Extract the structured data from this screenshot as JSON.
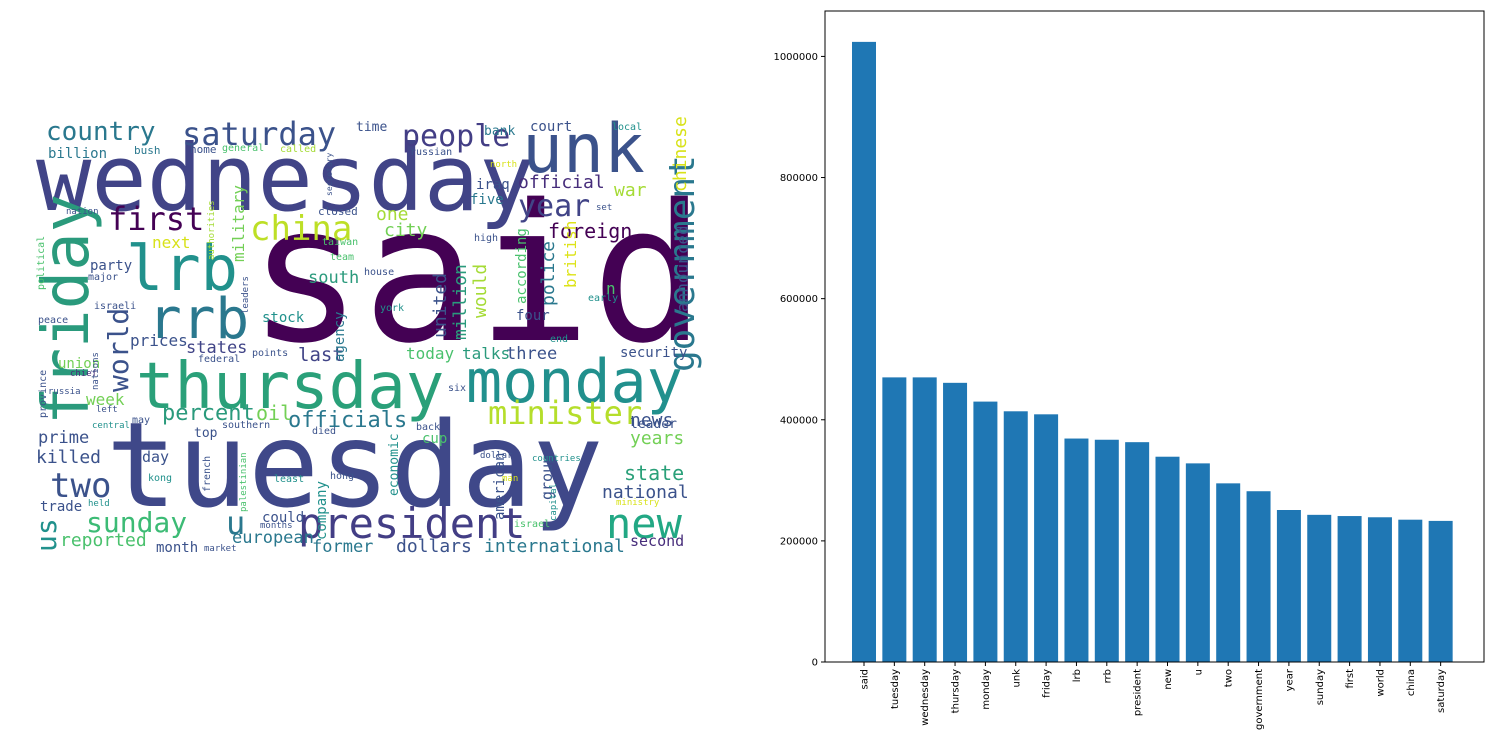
{
  "wordcloud": {
    "palette": [
      "#440154",
      "#3b528b",
      "#21918c",
      "#5ec962",
      "#fde725"
    ],
    "words": [
      {
        "text": "said",
        "c": "#440154"
      },
      {
        "text": "tuesday",
        "c": "#3f4889"
      },
      {
        "text": "wednesday",
        "c": "#414487"
      },
      {
        "text": "thursday",
        "c": "#2aa079"
      },
      {
        "text": "monday",
        "c": "#21908d"
      },
      {
        "text": "unk",
        "c": "#3b528b"
      },
      {
        "text": "friday",
        "c": "#2a9a7c"
      },
      {
        "text": "lrb",
        "c": "#21918c"
      },
      {
        "text": "rrb",
        "c": "#2a788e"
      },
      {
        "text": "president",
        "c": "#433e85"
      },
      {
        "text": "new",
        "c": "#22a884"
      },
      {
        "text": "government",
        "c": "#2a788e"
      },
      {
        "text": "minister",
        "c": "#b5de2b"
      },
      {
        "text": "china",
        "c": "#bddf26"
      },
      {
        "text": "saturday",
        "c": "#3b528b"
      },
      {
        "text": "people",
        "c": "#433e85"
      },
      {
        "text": "country",
        "c": "#2a788e"
      },
      {
        "text": "year",
        "c": "#414487"
      },
      {
        "text": "first",
        "c": "#440154"
      },
      {
        "text": "sunday",
        "c": "#3cbb75"
      },
      {
        "text": "u",
        "c": "#2a788e"
      },
      {
        "text": "two",
        "c": "#3b528b"
      },
      {
        "text": "us",
        "c": "#21918c"
      },
      {
        "text": "world",
        "c": "#3b528b"
      },
      {
        "text": "officials",
        "c": "#2a788e"
      },
      {
        "text": "percent",
        "c": "#2a9a7c"
      },
      {
        "text": "oil",
        "c": "#73d056"
      },
      {
        "text": "united",
        "c": "#3b528b"
      },
      {
        "text": "million",
        "c": "#2a9a7c"
      },
      {
        "text": "police",
        "c": "#2a788e"
      },
      {
        "text": "foreign",
        "c": "#440154"
      },
      {
        "text": "official",
        "c": "#472d7b"
      },
      {
        "text": "chinese",
        "c": "#d8e219"
      },
      {
        "text": "war",
        "c": "#a5db36"
      },
      {
        "text": "would",
        "c": "#a5db36"
      },
      {
        "text": "british",
        "c": "#dde318"
      },
      {
        "text": "according",
        "c": "#4ac16d"
      },
      {
        "text": "announced",
        "c": "#3b528b"
      },
      {
        "text": "national",
        "c": "#3b528b"
      },
      {
        "text": "state",
        "c": "#2aa079"
      },
      {
        "text": "news",
        "c": "#3b528b"
      },
      {
        "text": "years",
        "c": "#73d056"
      },
      {
        "text": "international",
        "c": "#2a788e"
      },
      {
        "text": "dollars",
        "c": "#3b528b"
      },
      {
        "text": "former",
        "c": "#2a788e"
      },
      {
        "text": "european",
        "c": "#2a788e"
      },
      {
        "text": "reported",
        "c": "#4ac16d"
      },
      {
        "text": "killed",
        "c": "#3b528b"
      },
      {
        "text": "prime",
        "c": "#3b528b"
      },
      {
        "text": "week",
        "c": "#73d056"
      },
      {
        "text": "last",
        "c": "#414487"
      },
      {
        "text": "states",
        "c": "#414487"
      },
      {
        "text": "prices",
        "c": "#3b528b"
      },
      {
        "text": "south",
        "c": "#2a9a7c"
      },
      {
        "text": "city",
        "c": "#73d056"
      },
      {
        "text": "one",
        "c": "#a5db36"
      },
      {
        "text": "next",
        "c": "#d8e219"
      },
      {
        "text": "military",
        "c": "#73d056"
      },
      {
        "text": "party",
        "c": "#3b528b"
      },
      {
        "text": "stock",
        "c": "#21918c"
      },
      {
        "text": "three",
        "c": "#3b528b"
      },
      {
        "text": "today",
        "c": "#4ac16d"
      },
      {
        "text": "talks",
        "c": "#2a9a7c"
      },
      {
        "text": "security",
        "c": "#3b528b"
      },
      {
        "text": "leader",
        "c": "#3b528b"
      },
      {
        "text": "four",
        "c": "#3b528b"
      },
      {
        "text": "n",
        "c": "#4ac16d"
      },
      {
        "text": "group",
        "c": "#3b528b"
      },
      {
        "text": "american",
        "c": "#3b528b"
      },
      {
        "text": "economic",
        "c": "#21918c"
      },
      {
        "text": "cup",
        "c": "#4ac16d"
      },
      {
        "text": "second",
        "c": "#472d7b"
      },
      {
        "text": "company",
        "c": "#21918c"
      },
      {
        "text": "could",
        "c": "#3b528b"
      },
      {
        "text": "month",
        "c": "#3b528b"
      },
      {
        "text": "trade",
        "c": "#3b528b"
      },
      {
        "text": "day",
        "c": "#3b528b"
      },
      {
        "text": "top",
        "c": "#3b528b"
      },
      {
        "text": "union",
        "c": "#73d056"
      },
      {
        "text": "billion",
        "c": "#2a788e"
      },
      {
        "text": "bank",
        "c": "#2a788e"
      },
      {
        "text": "court",
        "c": "#3b528b"
      },
      {
        "text": "iraq",
        "c": "#3b528b"
      },
      {
        "text": "five",
        "c": "#2a788e"
      },
      {
        "text": "time",
        "c": "#3b528b"
      },
      {
        "text": "agency",
        "c": "#2a788e"
      },
      {
        "text": "closed",
        "c": "#3b528b"
      },
      {
        "text": "high",
        "c": "#3b528b"
      },
      {
        "text": "taiwan",
        "c": "#4ac16d"
      },
      {
        "text": "team",
        "c": "#4ac16d"
      },
      {
        "text": "house",
        "c": "#3b528b"
      },
      {
        "text": "york",
        "c": "#21918c"
      },
      {
        "text": "early",
        "c": "#21918c"
      },
      {
        "text": "end",
        "c": "#21918c"
      },
      {
        "text": "six",
        "c": "#3b528b"
      },
      {
        "text": "points",
        "c": "#3b528b"
      },
      {
        "text": "federal",
        "c": "#3b528b"
      },
      {
        "text": "chief",
        "c": "#472d7b"
      },
      {
        "text": "russia",
        "c": "#3b528b"
      },
      {
        "text": "peace",
        "c": "#3b528b"
      },
      {
        "text": "major",
        "c": "#3b528b"
      },
      {
        "text": "israeli",
        "c": "#3b528b"
      },
      {
        "text": "political",
        "c": "#4ac16d"
      },
      {
        "text": "province",
        "c": "#3b528b"
      },
      {
        "text": "nation",
        "c": "#3b528b"
      },
      {
        "text": "leaders",
        "c": "#3b528b"
      },
      {
        "text": "authorities",
        "c": "#a5db36"
      },
      {
        "text": "bush",
        "c": "#2a788e"
      },
      {
        "text": "home",
        "c": "#3b528b"
      },
      {
        "text": "general",
        "c": "#4ac16d"
      },
      {
        "text": "called",
        "c": "#a5db36"
      },
      {
        "text": "secretary",
        "c": "#3b528b"
      },
      {
        "text": "russian",
        "c": "#3b528b"
      },
      {
        "text": "north",
        "c": "#d8e219"
      },
      {
        "text": "local",
        "c": "#21918c"
      },
      {
        "text": "set",
        "c": "#3b528b"
      },
      {
        "text": "nations",
        "c": "#3b528b"
      },
      {
        "text": "may",
        "c": "#3b528b"
      },
      {
        "text": "left",
        "c": "#3b528b"
      },
      {
        "text": "central",
        "c": "#21918c"
      },
      {
        "text": "kong",
        "c": "#21918c"
      },
      {
        "text": "hong",
        "c": "#3b528b"
      },
      {
        "text": "french",
        "c": "#3b528b"
      },
      {
        "text": "southern",
        "c": "#3b528b"
      },
      {
        "text": "died",
        "c": "#3b528b"
      },
      {
        "text": "palestinian",
        "c": "#4ac16d"
      },
      {
        "text": "least",
        "c": "#21918c"
      },
      {
        "text": "months",
        "c": "#3b528b"
      },
      {
        "text": "market",
        "c": "#3b528b"
      },
      {
        "text": "back",
        "c": "#3b528b"
      },
      {
        "text": "held",
        "c": "#21918c"
      },
      {
        "text": "dollar",
        "c": "#3b528b"
      },
      {
        "text": "countries",
        "c": "#21918c"
      },
      {
        "text": "israel",
        "c": "#4ac16d"
      },
      {
        "text": "capital",
        "c": "#21918c"
      },
      {
        "text": "man",
        "c": "#d8e219"
      },
      {
        "text": "ministry",
        "c": "#d8e219"
      }
    ]
  },
  "chart_data": {
    "type": "bar",
    "bar_color": "#1f77b4",
    "categories": [
      "said",
      "tuesday",
      "wednesday",
      "thursday",
      "monday",
      "unk",
      "friday",
      "lrb",
      "rrb",
      "president",
      "new",
      "u",
      "two",
      "government",
      "year",
      "sunday",
      "first",
      "world",
      "china",
      "saturday"
    ],
    "values": [
      1024000,
      470000,
      470000,
      461000,
      430000,
      414000,
      409000,
      369000,
      367000,
      363000,
      339000,
      328000,
      295000,
      282000,
      251000,
      243000,
      241000,
      239000,
      235000,
      233000
    ],
    "yticks": [
      "0",
      "200000",
      "400000",
      "600000",
      "800000",
      "1000000"
    ],
    "ylim": [
      0,
      1075000
    ],
    "grid": false
  }
}
